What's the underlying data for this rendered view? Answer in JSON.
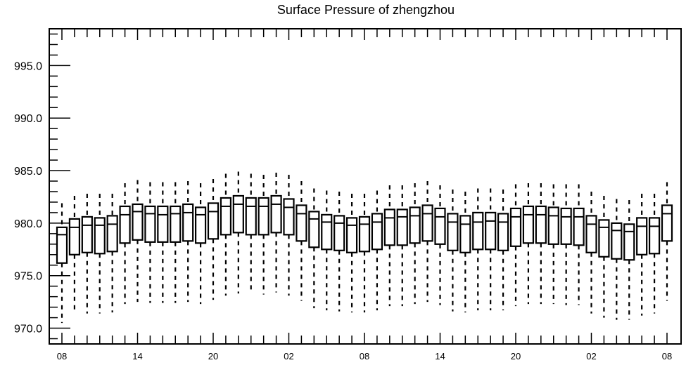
{
  "chart_data": {
    "type": "boxplot",
    "title": "Surface Pressure of zhengzhou",
    "xlabel": "",
    "ylabel": "",
    "ylim": [
      968.5,
      998.5
    ],
    "yticks": [
      "970.0",
      "975.0",
      "980.0",
      "985.0",
      "990.0",
      "995.0"
    ],
    "ytick_values": [
      970,
      975,
      980,
      985,
      990,
      995
    ],
    "xtick_labels": [
      "08",
      "14",
      "20",
      "02",
      "08",
      "14",
      "20",
      "02",
      "08"
    ],
    "xtick_positions": [
      0,
      6,
      12,
      18,
      24,
      30,
      36,
      42,
      48
    ],
    "grid": false,
    "boxes": [
      {
        "x": 0,
        "whislo": 970.5,
        "q1": 976.2,
        "med": 978.9,
        "q3": 979.6,
        "whishi": 981.9
      },
      {
        "x": 1,
        "whislo": 971.4,
        "q1": 977.0,
        "med": 979.6,
        "q3": 980.4,
        "whishi": 982.6
      },
      {
        "x": 2,
        "whislo": 971.4,
        "q1": 977.2,
        "med": 979.8,
        "q3": 980.6,
        "whishi": 982.8
      },
      {
        "x": 3,
        "whislo": 971.4,
        "q1": 977.1,
        "med": 979.8,
        "q3": 980.5,
        "whishi": 982.8
      },
      {
        "x": 4,
        "whislo": 971.5,
        "q1": 977.3,
        "med": 979.9,
        "q3": 980.7,
        "whishi": 982.8
      },
      {
        "x": 5,
        "whislo": 972.3,
        "q1": 978.1,
        "med": 980.8,
        "q3": 981.6,
        "whishi": 983.8
      },
      {
        "x": 6,
        "whislo": 972.5,
        "q1": 978.4,
        "med": 981.1,
        "q3": 981.8,
        "whishi": 984.1
      },
      {
        "x": 7,
        "whislo": 972.4,
        "q1": 978.2,
        "med": 980.9,
        "q3": 981.6,
        "whishi": 983.9
      },
      {
        "x": 8,
        "whislo": 972.4,
        "q1": 978.2,
        "med": 980.8,
        "q3": 981.6,
        "whishi": 983.9
      },
      {
        "x": 9,
        "whislo": 972.4,
        "q1": 978.2,
        "med": 980.9,
        "q3": 981.6,
        "whishi": 983.9
      },
      {
        "x": 10,
        "whislo": 972.5,
        "q1": 978.3,
        "med": 981.0,
        "q3": 981.8,
        "whishi": 984.0
      },
      {
        "x": 11,
        "whislo": 972.3,
        "q1": 978.1,
        "med": 980.8,
        "q3": 981.5,
        "whishi": 983.8
      },
      {
        "x": 12,
        "whislo": 972.7,
        "q1": 978.5,
        "med": 981.1,
        "q3": 981.9,
        "whishi": 984.2
      },
      {
        "x": 13,
        "whislo": 973.1,
        "q1": 978.9,
        "med": 981.6,
        "q3": 982.4,
        "whishi": 984.7
      },
      {
        "x": 14,
        "whislo": 973.3,
        "q1": 979.1,
        "med": 981.8,
        "q3": 982.6,
        "whishi": 984.9
      },
      {
        "x": 15,
        "whislo": 973.3,
        "q1": 978.9,
        "med": 981.6,
        "q3": 982.4,
        "whishi": 984.7
      },
      {
        "x": 16,
        "whislo": 973.2,
        "q1": 978.9,
        "med": 981.6,
        "q3": 982.4,
        "whishi": 984.6
      },
      {
        "x": 17,
        "whislo": 973.4,
        "q1": 979.1,
        "med": 981.8,
        "q3": 982.6,
        "whishi": 984.8
      },
      {
        "x": 18,
        "whislo": 973.1,
        "q1": 978.9,
        "med": 981.5,
        "q3": 982.3,
        "whishi": 984.6
      },
      {
        "x": 19,
        "whislo": 972.6,
        "q1": 978.3,
        "med": 980.9,
        "q3": 981.7,
        "whishi": 984.0
      },
      {
        "x": 20,
        "whislo": 971.9,
        "q1": 977.7,
        "med": 980.4,
        "q3": 981.1,
        "whishi": 983.3
      },
      {
        "x": 21,
        "whislo": 971.7,
        "q1": 977.5,
        "med": 980.1,
        "q3": 980.8,
        "whishi": 983.1
      },
      {
        "x": 22,
        "whislo": 971.6,
        "q1": 977.4,
        "med": 980.0,
        "q3": 980.7,
        "whishi": 983.0
      },
      {
        "x": 23,
        "whislo": 971.5,
        "q1": 977.2,
        "med": 979.8,
        "q3": 980.5,
        "whishi": 982.8
      },
      {
        "x": 24,
        "whislo": 971.5,
        "q1": 977.3,
        "med": 979.9,
        "q3": 980.6,
        "whishi": 982.8
      },
      {
        "x": 25,
        "whislo": 971.7,
        "q1": 977.5,
        "med": 980.1,
        "q3": 980.9,
        "whishi": 983.1
      },
      {
        "x": 26,
        "whislo": 972.1,
        "q1": 977.9,
        "med": 980.5,
        "q3": 981.3,
        "whishi": 983.6
      },
      {
        "x": 27,
        "whislo": 972.1,
        "q1": 977.9,
        "med": 980.6,
        "q3": 981.3,
        "whishi": 983.6
      },
      {
        "x": 28,
        "whislo": 972.3,
        "q1": 978.1,
        "med": 980.7,
        "q3": 981.5,
        "whishi": 983.8
      },
      {
        "x": 29,
        "whislo": 972.5,
        "q1": 978.3,
        "med": 980.9,
        "q3": 981.7,
        "whishi": 984.0
      },
      {
        "x": 30,
        "whislo": 972.2,
        "q1": 978.0,
        "med": 980.6,
        "q3": 981.4,
        "whishi": 983.6
      },
      {
        "x": 31,
        "whislo": 971.6,
        "q1": 977.4,
        "med": 980.1,
        "q3": 980.9,
        "whishi": 983.2
      },
      {
        "x": 32,
        "whislo": 971.5,
        "q1": 977.2,
        "med": 979.9,
        "q3": 980.7,
        "whishi": 983.0
      },
      {
        "x": 33,
        "whislo": 971.7,
        "q1": 977.5,
        "med": 980.1,
        "q3": 981.0,
        "whishi": 983.3
      },
      {
        "x": 34,
        "whislo": 971.7,
        "q1": 977.5,
        "med": 980.2,
        "q3": 981.0,
        "whishi": 983.3
      },
      {
        "x": 35,
        "whislo": 971.7,
        "q1": 977.4,
        "med": 980.1,
        "q3": 980.9,
        "whishi": 983.2
      },
      {
        "x": 36,
        "whislo": 972.1,
        "q1": 977.8,
        "med": 980.6,
        "q3": 981.4,
        "whishi": 983.7
      },
      {
        "x": 37,
        "whislo": 972.3,
        "q1": 978.1,
        "med": 980.8,
        "q3": 981.6,
        "whishi": 983.8
      },
      {
        "x": 38,
        "whislo": 972.3,
        "q1": 978.1,
        "med": 980.8,
        "q3": 981.6,
        "whishi": 983.8
      },
      {
        "x": 39,
        "whislo": 972.3,
        "q1": 978.0,
        "med": 980.7,
        "q3": 981.5,
        "whishi": 983.7
      },
      {
        "x": 40,
        "whislo": 972.2,
        "q1": 978.0,
        "med": 980.6,
        "q3": 981.4,
        "whishi": 983.7
      },
      {
        "x": 41,
        "whislo": 972.2,
        "q1": 977.9,
        "med": 980.6,
        "q3": 981.4,
        "whishi": 983.7
      },
      {
        "x": 42,
        "whislo": 971.4,
        "q1": 977.2,
        "med": 979.9,
        "q3": 980.7,
        "whishi": 983.0
      },
      {
        "x": 43,
        "whislo": 971.0,
        "q1": 976.8,
        "med": 979.6,
        "q3": 980.3,
        "whishi": 982.6
      },
      {
        "x": 44,
        "whislo": 970.8,
        "q1": 976.6,
        "med": 979.3,
        "q3": 980.0,
        "whishi": 982.3
      },
      {
        "x": 45,
        "whislo": 970.8,
        "q1": 976.5,
        "med": 979.2,
        "q3": 979.9,
        "whishi": 982.2
      },
      {
        "x": 46,
        "whislo": 971.2,
        "q1": 977.0,
        "med": 979.7,
        "q3": 980.5,
        "whishi": 982.8
      },
      {
        "x": 47,
        "whislo": 971.4,
        "q1": 977.1,
        "med": 979.7,
        "q3": 980.5,
        "whishi": 982.8
      },
      {
        "x": 48,
        "whislo": 972.6,
        "q1": 978.3,
        "med": 980.9,
        "q3": 981.7,
        "whishi": 983.9
      }
    ]
  }
}
